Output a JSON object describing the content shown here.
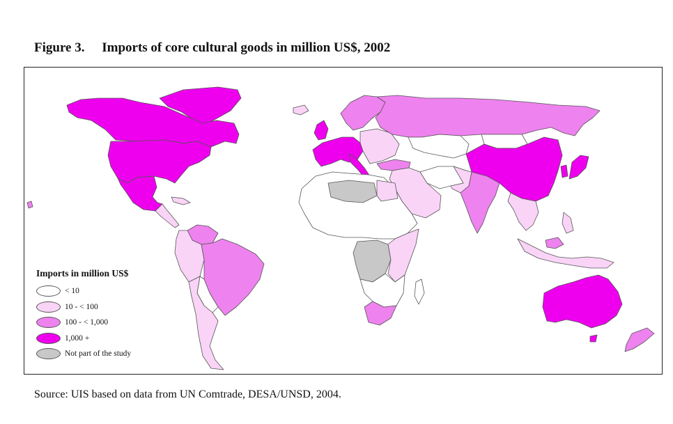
{
  "figure": {
    "number_label": "Figure 3.",
    "title": "Imports of core cultural goods in million US$, 2002"
  },
  "legend": {
    "title": "Imports in million US$",
    "items": [
      {
        "label": "< 10",
        "color": "#ffffff"
      },
      {
        "label": "10 - < 100",
        "color": "#f9d4f7"
      },
      {
        "label": "100 - < 1,000",
        "color": "#ee82ee"
      },
      {
        "label": "1,000 +",
        "color": "#ee00ee"
      },
      {
        "label": "Not part of the study",
        "color": "#c8c8c8"
      }
    ]
  },
  "source": "Source:  UIS based on data from UN Comtrade, DESA/UNSD, 2004.",
  "colors": {
    "border": "#555555",
    "frame": "#222222"
  }
}
